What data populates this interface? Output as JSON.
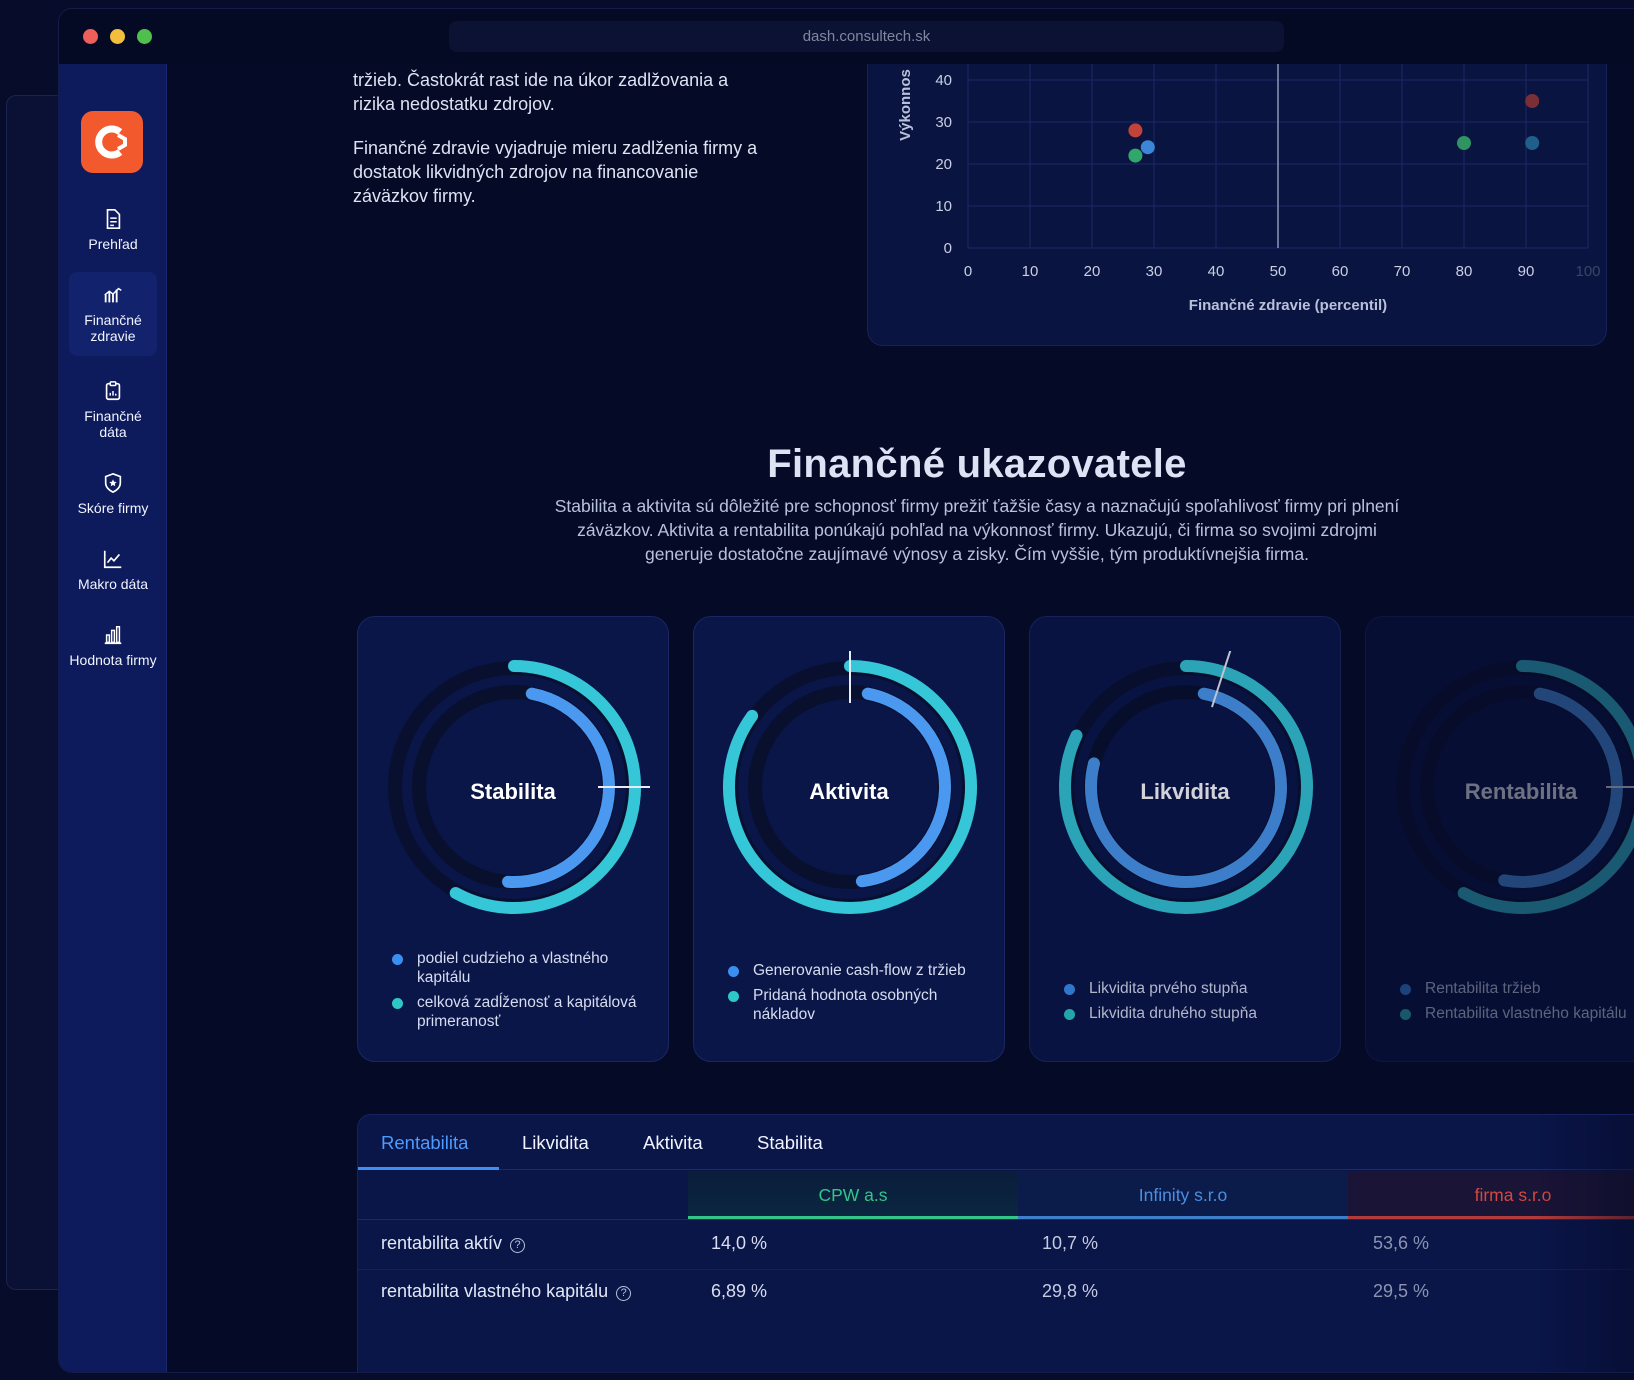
{
  "browser": {
    "url": "dash.consultech.sk"
  },
  "sidebar": {
    "items": [
      {
        "label": "Prehľad",
        "icon": "document-icon"
      },
      {
        "label": "Finančné zdravie",
        "icon": "health-chart-icon",
        "active": true
      },
      {
        "label": "Finančné dáta",
        "icon": "clipboard-icon"
      },
      {
        "label": "Skóre firmy",
        "icon": "shield-star-icon"
      },
      {
        "label": "Makro dáta",
        "icon": "line-chart-icon"
      },
      {
        "label": "Hodnota firmy",
        "icon": "bar-chart-icon"
      }
    ]
  },
  "intro": {
    "paragraph1": "tržieb. Častokrát rast ide na úkor zadlžovania a rizika nedostatku zdrojov.",
    "paragraph2": "Finančné zdravie vyjadruje mieru zadlženia firmy a dostatok likvidných zdrojov na financovanie záväzkov firmy."
  },
  "chart_data": {
    "type": "scatter",
    "xlabel": "Finančné zdravie (percentil)",
    "ylabel": "Výkonnos",
    "x_ticks": [
      0,
      10,
      20,
      30,
      40,
      50,
      60,
      70,
      80,
      90,
      100
    ],
    "y_ticks": [
      0,
      10,
      20,
      30,
      40
    ],
    "xlim": [
      0,
      100
    ],
    "ylim": [
      0,
      40
    ],
    "reference_line_x": 50,
    "points": [
      {
        "x": 27,
        "y": 28,
        "color": "#c2433a"
      },
      {
        "x": 27,
        "y": 22,
        "color": "#2fa86a"
      },
      {
        "x": 29,
        "y": 24,
        "color": "#3c86d9"
      },
      {
        "x": 80,
        "y": 25,
        "color": "#2f9462"
      },
      {
        "x": 91,
        "y": 35,
        "color": "#7a2f37"
      },
      {
        "x": 91,
        "y": 25,
        "color": "#1f5f8a"
      }
    ]
  },
  "section": {
    "title": "Finančné ukazovatele",
    "subtitle": "Stabilita a aktivita sú dôležité pre schopnosť firmy prežiť ťažšie časy a naznačujú spoľahlivosť firmy pri plnení záväzkov. Aktivita a rentabilita ponúkajú pohľad na výkonnosť firmy. Ukazujú, či firma so svojimi zdrojmi generuje dostatočne zaujímavé výnosy a zisky. Čím vyššie, tým produktívnejšia firma."
  },
  "metrics": [
    {
      "name": "Stabilita",
      "outer_arc": 0.58,
      "inner_arc": 0.48,
      "marker": 0.25,
      "legend": [
        "podiel cudzieho a vlastného kapitálu",
        "celková zadĺženosť a kapitálová primeranosť"
      ]
    },
    {
      "name": "Aktivita",
      "outer_arc": 0.85,
      "inner_arc": 0.45,
      "marker": 0.0,
      "legend": [
        "Generovanie cash-flow z tržieb",
        "Pridaná hodnota osobných nákladov"
      ]
    },
    {
      "name": "Likvidita",
      "outer_arc": 0.82,
      "inner_arc": 0.76,
      "marker": 0.05,
      "legend": [
        "Likvidita prvého stupňa",
        "Likvidita druhého stupňa"
      ]
    },
    {
      "name": "Rentabilita",
      "outer_arc": 0.58,
      "inner_arc": 0.5,
      "marker": 0.25,
      "legend": [
        "Rentabilita tržieb",
        "Rentabilita vlastného kapitálu"
      ]
    }
  ],
  "colors": {
    "outer_arc": "#35c6d8",
    "inner_arc": "#4a98ef",
    "legend_dot1": "#3a8ff0",
    "legend_dot2": "#2ec8c6",
    "cpw": "#32c58a",
    "infinity": "#4a8fe0",
    "firma": "#d4493f"
  },
  "table": {
    "tabs": [
      "Rentabilita",
      "Likvidita",
      "Aktivita",
      "Stabilita"
    ],
    "active_tab": "Rentabilita",
    "columns": [
      "CPW a.s",
      "Infinity s.r.o",
      "firma s.r.o"
    ],
    "rows": [
      {
        "label": "rentabilita aktív",
        "values": [
          "14,0 %",
          "10,7 %",
          "53,6 %"
        ]
      },
      {
        "label": "rentabilita vlastného kapitálu",
        "values": [
          "6,89 %",
          "29,8 %",
          "29,5 %"
        ]
      }
    ],
    "help_glyph": "?"
  }
}
